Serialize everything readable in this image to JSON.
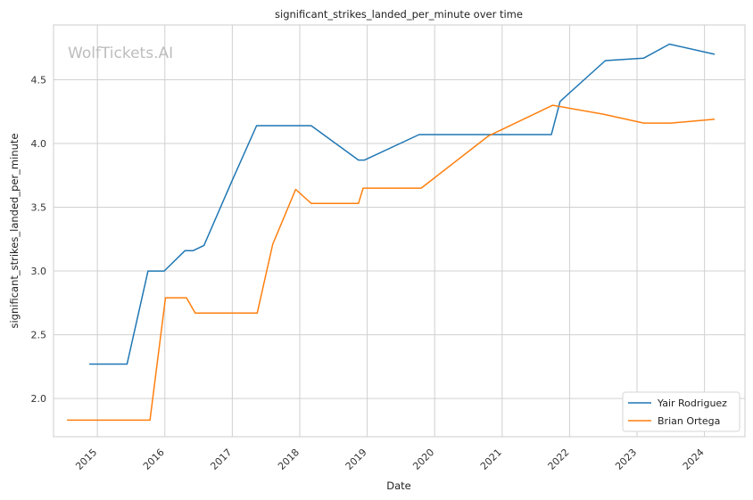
{
  "chart_data": {
    "type": "line",
    "title": "significant_strikes_landed_per_minute over time",
    "xlabel": "Date",
    "ylabel": "significant_strikes_landed_per_minute",
    "watermark": "WolfTickets.AI",
    "xlim": [
      2014.35,
      2024.6
    ],
    "ylim": [
      1.7,
      4.93
    ],
    "x_ticks": [
      2015,
      2016,
      2017,
      2018,
      2019,
      2020,
      2021,
      2022,
      2023,
      2024
    ],
    "x_tick_labels": [
      "2015",
      "2016",
      "2017",
      "2018",
      "2019",
      "2020",
      "2021",
      "2022",
      "2023",
      "2024"
    ],
    "y_ticks": [
      2.0,
      2.5,
      3.0,
      3.5,
      4.0,
      4.5
    ],
    "y_tick_labels": [
      "2.0",
      "2.5",
      "3.0",
      "3.5",
      "4.0",
      "4.5"
    ],
    "grid": true,
    "legend_position": "lower-right",
    "series": [
      {
        "name": "Yair Rodriguez",
        "color": "#1f77b4",
        "x": [
          2014.88,
          2015.44,
          2015.75,
          2015.99,
          2016.3,
          2016.42,
          2016.58,
          2016.99,
          2017.36,
          2018.17,
          2018.87,
          2018.96,
          2019.77,
          2021.73,
          2021.86,
          2022.53,
          2023.1,
          2023.48,
          2024.15
        ],
        "y": [
          2.27,
          2.27,
          3.0,
          3.0,
          3.16,
          3.16,
          3.2,
          3.7,
          4.14,
          4.14,
          3.87,
          3.87,
          4.07,
          4.07,
          4.33,
          4.65,
          4.67,
          4.78,
          4.7
        ]
      },
      {
        "name": "Brian Ortega",
        "color": "#ff7f0e",
        "x": [
          2014.55,
          2015.78,
          2016.01,
          2016.32,
          2016.45,
          2017.37,
          2017.6,
          2017.94,
          2018.17,
          2018.87,
          2018.94,
          2019.8,
          2020.8,
          2021.75,
          2022.5,
          2023.1,
          2023.5,
          2024.15
        ],
        "y": [
          1.83,
          1.83,
          2.79,
          2.79,
          2.67,
          2.67,
          3.21,
          3.64,
          3.53,
          3.53,
          3.65,
          3.65,
          4.06,
          4.3,
          4.23,
          4.16,
          4.16,
          4.19
        ]
      }
    ]
  }
}
